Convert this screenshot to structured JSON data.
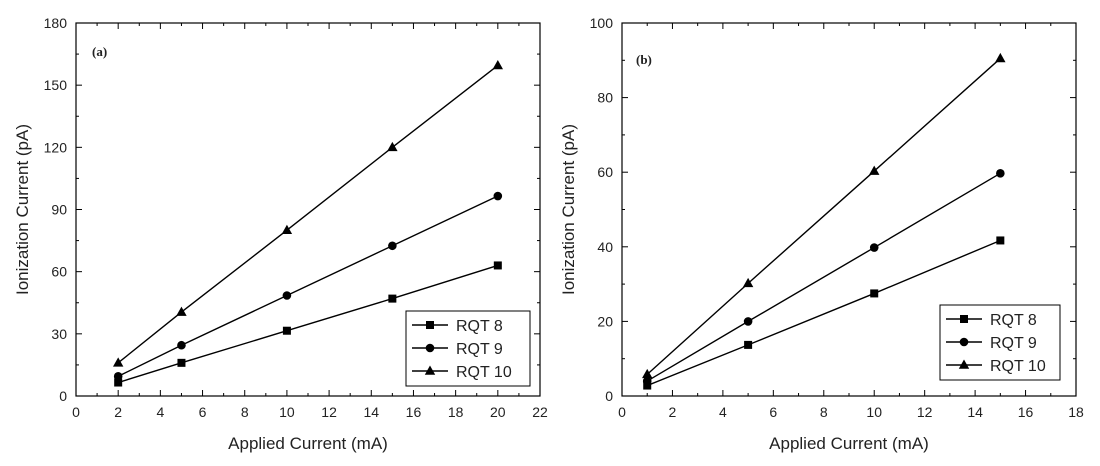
{
  "chart_data": [
    {
      "type": "line",
      "panel_label": "(a)",
      "xlabel": "Applied Current (mA)",
      "ylabel": "Ionization Current (pA)",
      "xlim": [
        0,
        22
      ],
      "ylim": [
        0,
        180
      ],
      "xticks": [
        0,
        2,
        4,
        6,
        8,
        10,
        12,
        14,
        16,
        18,
        20,
        22
      ],
      "yticks": [
        0,
        30,
        60,
        90,
        120,
        150,
        180
      ],
      "x": [
        2,
        5,
        10,
        15,
        20
      ],
      "grid": false,
      "legend_position": "bottom-right",
      "series": [
        {
          "name": "RQT 8",
          "marker": "square",
          "values": [
            6.5,
            16,
            31.5,
            47,
            63
          ]
        },
        {
          "name": "RQT 9",
          "marker": "circle",
          "values": [
            9.5,
            24.5,
            48.5,
            72.5,
            96.5
          ]
        },
        {
          "name": "RQT 10",
          "marker": "triangle",
          "values": [
            16,
            40.5,
            80,
            120,
            159.5
          ]
        }
      ]
    },
    {
      "type": "line",
      "panel_label": "(b)",
      "xlabel": "Applied Current (mA)",
      "ylabel": "Ionization Current (pA)",
      "xlim": [
        0,
        18
      ],
      "ylim": [
        0,
        100
      ],
      "xticks": [
        0,
        2,
        4,
        6,
        8,
        10,
        12,
        14,
        16,
        18
      ],
      "yticks": [
        0,
        20,
        40,
        60,
        80,
        100
      ],
      "x": [
        1,
        5,
        10,
        15
      ],
      "grid": false,
      "legend_position": "bottom-right",
      "series": [
        {
          "name": "RQT 8",
          "marker": "square",
          "values": [
            2.8,
            13.7,
            27.5,
            41.7
          ]
        },
        {
          "name": "RQT 9",
          "marker": "circle",
          "values": [
            4,
            20,
            39.8,
            59.7
          ]
        },
        {
          "name": "RQT 10",
          "marker": "triangle",
          "values": [
            5.8,
            30.2,
            60.3,
            90.5
          ]
        }
      ]
    }
  ]
}
